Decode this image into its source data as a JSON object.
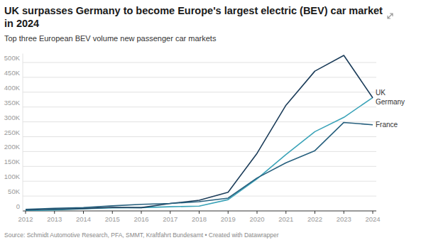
{
  "chart_data": {
    "type": "line",
    "title": "UK surpasses Germany to become Europe's largest electric (BEV) car market in 2024",
    "subtitle": "Top three European BEV volume new passenger car markets",
    "source": "Source: Schmidt Automotive Research, PFA, SMMT, Kraftfahrt Bundesamt • Created with Datawrapper",
    "x": [
      2012,
      2013,
      2014,
      2015,
      2016,
      2017,
      2018,
      2019,
      2020,
      2021,
      2022,
      2023,
      2024
    ],
    "xlim": [
      2012,
      2024
    ],
    "xticks": [
      2012,
      2013,
      2014,
      2015,
      2016,
      2017,
      2018,
      2019,
      2020,
      2021,
      2022,
      2023,
      2024
    ],
    "ylim": [
      0,
      530000
    ],
    "yticks": [
      0,
      {
        "value": 50000,
        "label": "50K"
      },
      {
        "value": 100000,
        "label": "100K"
      },
      {
        "value": 150000,
        "label": "150K"
      },
      {
        "value": 200000,
        "label": "200K"
      },
      {
        "value": 250000,
        "label": "250K"
      },
      {
        "value": 300000,
        "label": "300K"
      },
      {
        "value": 350000,
        "label": "350K"
      },
      {
        "value": 400000,
        "label": "400K"
      },
      {
        "value": 450000,
        "label": "450K"
      },
      {
        "value": 500000,
        "label": "500K"
      }
    ],
    "grid": true,
    "series": [
      {
        "name": "UK",
        "color": "#3ba3b8",
        "values": [
          1000,
          3000,
          7000,
          10000,
          11000,
          14000,
          16000,
          38000,
          108000,
          190000,
          267000,
          315000,
          382000
        ]
      },
      {
        "name": "Germany",
        "color": "#1c3d5a",
        "values": [
          3000,
          6000,
          8000,
          12000,
          11000,
          25000,
          36000,
          63000,
          194000,
          356000,
          471000,
          524000,
          381000
        ]
      },
      {
        "name": "France",
        "color": "#27607e",
        "values": [
          5000,
          9000,
          11000,
          17000,
          22000,
          25000,
          31000,
          43000,
          111000,
          162000,
          203000,
          298000,
          290000
        ]
      }
    ]
  }
}
